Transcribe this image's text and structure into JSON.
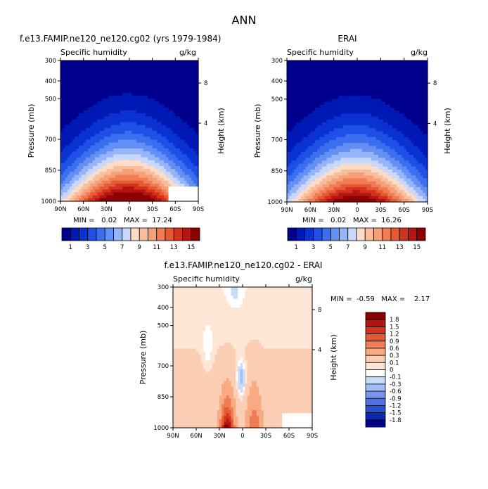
{
  "page_title": "ANN",
  "chart_data": [
    {
      "type": "heatmap",
      "title": "f.e13.FAMIP.ne120_ne120.cg02 (yrs 1979-1984)",
      "variable": "Specific humidity",
      "units": "g/kg",
      "ylabel": "Pressure (mb)",
      "ylabel_right": "Height (km)",
      "x_ticks": [
        "90N",
        "60N",
        "30N",
        "0",
        "30S",
        "60S",
        "90S"
      ],
      "y_ticks": [
        "300",
        "400",
        "500",
        "700",
        "850",
        "1000"
      ],
      "y_right_ticks": [
        "8",
        "4"
      ],
      "stats_text": "MIN =   0.02   MAX =  17.24",
      "min": 0.02,
      "max": 17.24,
      "peak_latitude": 0,
      "levels": [
        1,
        2,
        3,
        4,
        5,
        6,
        7,
        8,
        9,
        10,
        11,
        12,
        13,
        14,
        15,
        16
      ],
      "colorbar_labels": [
        "1",
        "3",
        "5",
        "7",
        "9",
        "11",
        "13",
        "15"
      ]
    },
    {
      "type": "heatmap",
      "title": "ERAI",
      "variable": "Specific humidity",
      "units": "g/kg",
      "ylabel": "Pressure (mb)",
      "ylabel_right": "Height (km)",
      "x_ticks": [
        "90N",
        "60N",
        "30N",
        "0",
        "30S",
        "60S",
        "90S"
      ],
      "y_ticks": [
        "300",
        "400",
        "500",
        "700",
        "850",
        "1000"
      ],
      "y_right_ticks": [
        "8",
        "4"
      ],
      "stats_text": "MIN =   0.02   MAX =  16.26",
      "min": 0.02,
      "max": 16.26,
      "peak_latitude": 0,
      "levels": [
        1,
        2,
        3,
        4,
        5,
        6,
        7,
        8,
        9,
        10,
        11,
        12,
        13,
        14,
        15,
        16
      ],
      "colorbar_labels": [
        "1",
        "3",
        "5",
        "7",
        "9",
        "11",
        "13",
        "15"
      ]
    },
    {
      "type": "heatmap",
      "title": "f.e13.FAMIP.ne120_ne120.cg02 - ERAI",
      "variable": "Specific humidity",
      "units": "g/kg",
      "ylabel": "Pressure (mb)",
      "ylabel_right": "Height (km)",
      "x_ticks": [
        "90N",
        "60N",
        "30N",
        "0",
        "30S",
        "60S",
        "90S"
      ],
      "y_ticks": [
        "300",
        "400",
        "500",
        "700",
        "850",
        "1000"
      ],
      "y_right_ticks": [
        "8",
        "4"
      ],
      "stats_text": "MIN =  -0.59   MAX =    2.17",
      "min": -0.59,
      "max": 2.17,
      "levels": [
        -1.8,
        -1.5,
        -1.2,
        -0.9,
        -0.6,
        -0.3,
        -0.1,
        0,
        0.1,
        0.3,
        0.6,
        0.9,
        1.2,
        1.5,
        1.8
      ],
      "colorbar_labels": [
        "1.8",
        "1.5",
        "1.2",
        "0.9",
        "0.6",
        "0.3",
        "0.1",
        "0",
        "-0.1",
        "-0.3",
        "-0.6",
        "-0.9",
        "-1.2",
        "-1.5",
        "-1.8"
      ]
    }
  ],
  "colors": {
    "abs_scale": [
      "#00008c",
      "#0018b4",
      "#0a32d2",
      "#1e50e6",
      "#3c6ef0",
      "#6490f5",
      "#96b4f8",
      "#c8d7fa",
      "#fadcc8",
      "#f8be9b",
      "#f5a078",
      "#f07d55",
      "#e65a32",
      "#d2321e",
      "#b41414",
      "#8c0000"
    ],
    "diff_scale": [
      "#8c0000",
      "#b41414",
      "#d2321e",
      "#e65a32",
      "#f07d55",
      "#f8aa82",
      "#facdb4",
      "#fde6d6",
      "#ffffff",
      "#c8dcfa",
      "#a0bef5",
      "#7896f0",
      "#5070e6",
      "#2850d2",
      "#0a28b4",
      "#00008c"
    ],
    "missing": "#ffffff"
  }
}
